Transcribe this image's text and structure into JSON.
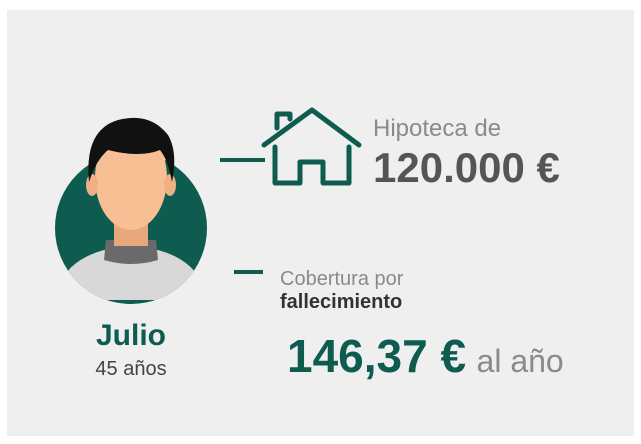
{
  "person": {
    "name": "Julio",
    "age": "45 años"
  },
  "mortgage": {
    "label": "Hipoteca de",
    "amount": "120.000 €"
  },
  "coverage": {
    "label": "Cobertura por",
    "type": "fallecimiento",
    "price": "146,37 €",
    "period": "al año"
  }
}
